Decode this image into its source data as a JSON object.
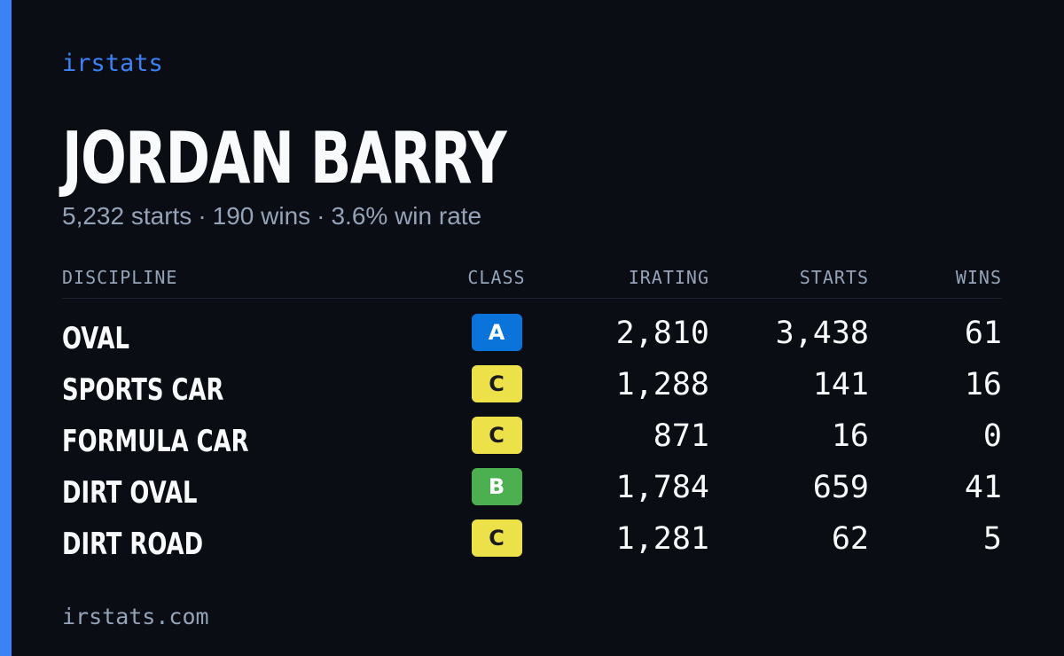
{
  "brand": "irstats",
  "driver": {
    "name": "JORDAN BARRY",
    "starts": "5,232 starts",
    "wins": "190 wins",
    "win_rate": "3.6% win rate",
    "separator": "·"
  },
  "table": {
    "headers": {
      "discipline": "DISCIPLINE",
      "class": "CLASS",
      "irating": "IRATING",
      "starts": "STARTS",
      "wins": "WINS"
    },
    "rows": [
      {
        "discipline": "OVAL",
        "class": "A",
        "class_color": "#0a74da",
        "class_text_color": "#ffffff",
        "irating": "2,810",
        "starts": "3,438",
        "wins": "61"
      },
      {
        "discipline": "SPORTS CAR",
        "class": "C",
        "class_color": "#ede14a",
        "class_text_color": "#1a1a1a",
        "irating": "1,288",
        "starts": "141",
        "wins": "16"
      },
      {
        "discipline": "FORMULA CAR",
        "class": "C",
        "class_color": "#ede14a",
        "class_text_color": "#1a1a1a",
        "irating": "871",
        "starts": "16",
        "wins": "0"
      },
      {
        "discipline": "DIRT OVAL",
        "class": "B",
        "class_color": "#4caf50",
        "class_text_color": "#ffffff",
        "irating": "1,784",
        "starts": "659",
        "wins": "41"
      },
      {
        "discipline": "DIRT ROAD",
        "class": "C",
        "class_color": "#ede14a",
        "class_text_color": "#1a1a1a",
        "irating": "1,281",
        "starts": "62",
        "wins": "5"
      }
    ]
  },
  "footer": "irstats.com",
  "colors": {
    "accent": "#3b82f6",
    "background": "#0a0d14",
    "muted": "#94a3b8",
    "text": "#f8fafc"
  }
}
